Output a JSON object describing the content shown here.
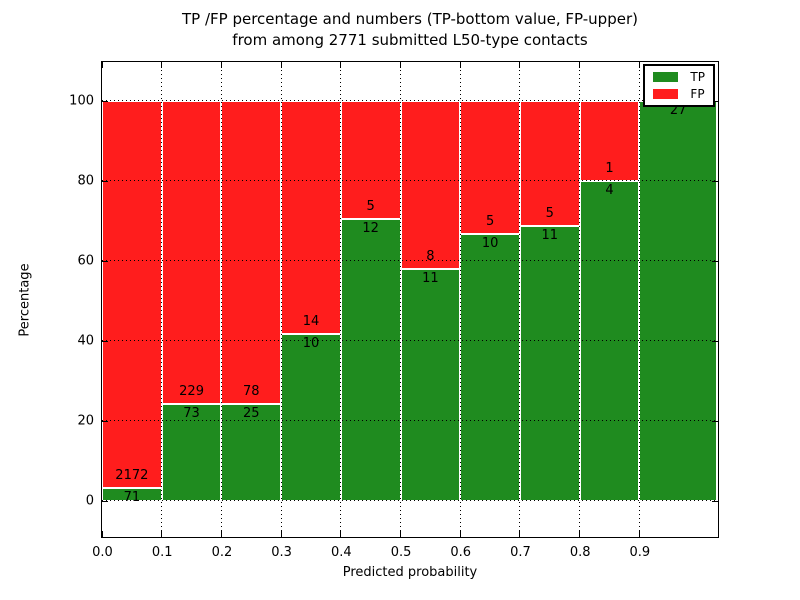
{
  "chart_data": {
    "type": "bar",
    "stacked": true,
    "normalized": "each bin scaled to 100 percent",
    "title_lines": [
      "TP /FP percentage and numbers (TP-bottom value, FP-upper)",
      "from among 2771 submitted L50-type contacts"
    ],
    "xlabel": "Predicted probability",
    "ylabel": "Percentage",
    "categories": [
      "0.0-0.1",
      "0.1-0.2",
      "0.2-0.3",
      "0.3-0.4",
      "0.4-0.5",
      "0.5-0.6",
      "0.6-0.7",
      "0.7-0.8",
      "0.8-0.9",
      "0.9-1.0"
    ],
    "bin_starts": [
      0.0,
      0.1,
      0.2,
      0.3,
      0.4,
      0.5,
      0.6,
      0.7,
      0.8,
      0.9
    ],
    "bin_width": 0.1,
    "series": [
      {
        "name": "TP",
        "color": "#1f8b1f",
        "values": [
          71,
          73,
          25,
          10,
          12,
          11,
          10,
          11,
          4,
          27
        ]
      },
      {
        "name": "FP",
        "color": "#ff1d1d",
        "values": [
          2172,
          229,
          78,
          14,
          5,
          8,
          5,
          5,
          1,
          0
        ]
      }
    ],
    "tp_percent_by_bin": [
      3.2,
      24.2,
      24.3,
      41.7,
      70.6,
      57.9,
      66.7,
      68.8,
      80.0,
      100.0
    ],
    "total_submitted": 2771,
    "xticks": [
      "0.0",
      "0.1",
      "0.2",
      "0.3",
      "0.4",
      "0.5",
      "0.6",
      "0.7",
      "0.8",
      "0.9"
    ],
    "yticks": [
      "0",
      "20",
      "40",
      "60",
      "80",
      "100"
    ],
    "xlim": [
      0,
      1.03
    ],
    "ylim": [
      -9,
      109.5
    ],
    "grid": "dotted black, horizontal and vertical",
    "legend": {
      "position": "upper right",
      "entries": [
        {
          "label": "TP",
          "color": "#1f8b1f"
        },
        {
          "label": "FP",
          "color": "#ff1d1d"
        }
      ]
    }
  }
}
